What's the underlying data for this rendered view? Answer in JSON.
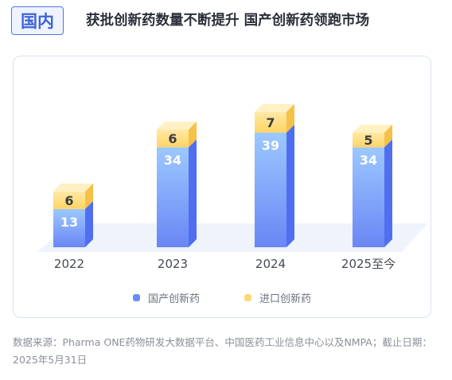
{
  "header": {
    "tag": "国内",
    "headline": "获批创新药数量不断提升  国产创新药领跑市场"
  },
  "colors": {
    "domestic": "#6b8cf7",
    "imported": "#ffd873",
    "tag_border": "#4f74e8"
  },
  "chart_data": {
    "type": "bar",
    "stacked": true,
    "categories": [
      "2022",
      "2023",
      "2024",
      "2025至今"
    ],
    "series": [
      {
        "name": "国产创新药",
        "values": [
          13,
          34,
          39,
          34
        ]
      },
      {
        "name": "进口创新药",
        "values": [
          6,
          6,
          7,
          5
        ]
      }
    ],
    "title": "",
    "xlabel": "",
    "ylabel": "",
    "legend_position": "bottom-center",
    "grid": false
  },
  "legend": {
    "domestic": "国产创新药",
    "imported": "进口创新药"
  },
  "source": "数据来源：Pharma ONE药物研发大数据平台、中国医药工业信息中心以及NMPA；截止日期：2025年5月31日"
}
